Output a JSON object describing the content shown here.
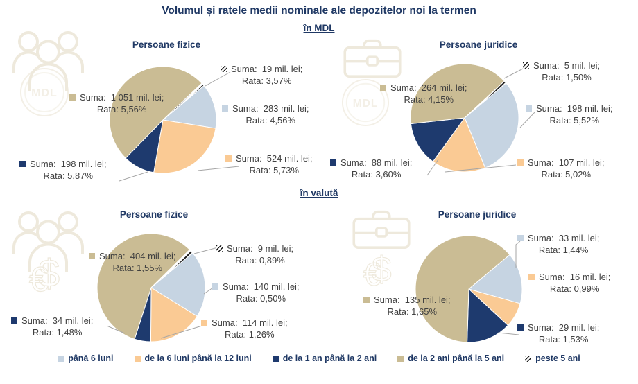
{
  "title": "Volumul și ratele medii nominale ale depozitelor noi la termen",
  "sections": [
    {
      "label": "în MDL"
    },
    {
      "label": "în valută"
    }
  ],
  "legend": [
    {
      "key": "pana6",
      "label": "până 6 luni"
    },
    {
      "key": "luni6_12",
      "label": "de la 6 luni până la 12 luni"
    },
    {
      "key": "ani1_2",
      "label": "de la 1 an până la 2 ani"
    },
    {
      "key": "ani2_5",
      "label": "de la 2 ani până la 5 ani"
    },
    {
      "key": "peste5",
      "label": "peste 5 ani",
      "hatch": true
    }
  ],
  "colors": {
    "pana6": "#c6d4e2",
    "luni6_12": "#faca94",
    "ani1_2": "#1e3a6e",
    "ani2_5": "#cabc94",
    "hatch_stripe": "#1a1a1a",
    "title_navy": "#1f3864",
    "label_text": "#404040",
    "leader_line": "#a6a6a6",
    "watermark": "#eee9dc"
  },
  "chart_data": [
    {
      "type": "pie",
      "section": "în MDL",
      "title": "Persoane fizice",
      "suma_unit": "mil. lei",
      "start_angle_deg": 50,
      "legend_position": "bottom",
      "slices": [
        {
          "category": "până 6 luni",
          "key": "pana6",
          "suma_mil_lei": 283,
          "rata_pct": 4.56,
          "label_suma": "Suma:  283 mil. lei;",
          "label_rata": "Rata: 4,56%"
        },
        {
          "category": "de la 6 luni până la 12 luni",
          "key": "luni6_12",
          "suma_mil_lei": 524,
          "rata_pct": 5.73,
          "label_suma": "Suma:  524 mil. lei;",
          "label_rata": "Rata: 5,73%"
        },
        {
          "category": "de la 1 an până la 2 ani",
          "key": "ani1_2",
          "suma_mil_lei": 198,
          "rata_pct": 5.87,
          "label_suma": "Suma:  198 mil. lei;",
          "label_rata": "Rata: 5,87%"
        },
        {
          "category": "de la 2 ani până la 5 ani",
          "key": "ani2_5",
          "suma_mil_lei": 1051,
          "rata_pct": 5.56,
          "label_suma": "Suma:  1 051 mil. lei;",
          "label_rata": "Rata: 5,56%"
        },
        {
          "category": "peste 5 ani",
          "key": "peste5",
          "suma_mil_lei": 19,
          "rata_pct": 3.57,
          "hatch": true,
          "label_suma": "Suma:  19 mil. lei;",
          "label_rata": "Rata: 3,57%"
        }
      ]
    },
    {
      "type": "pie",
      "section": "în MDL",
      "title": "Persoane juridice",
      "suma_unit": "mil. lei",
      "start_angle_deg": 50,
      "legend_position": "bottom",
      "slices": [
        {
          "category": "până 6 luni",
          "key": "pana6",
          "suma_mil_lei": 198,
          "rata_pct": 5.52,
          "label_suma": "Suma:  198 mil. lei;",
          "label_rata": "Rata: 5,52%"
        },
        {
          "category": "de la 6 luni până la 12 luni",
          "key": "luni6_12",
          "suma_mil_lei": 107,
          "rata_pct": 5.02,
          "label_suma": "Suma:  107 mil. lei;",
          "label_rata": "Rata: 5,02%"
        },
        {
          "category": "de la 1 an până la 2 ani",
          "key": "ani1_2",
          "suma_mil_lei": 88,
          "rata_pct": 3.6,
          "label_suma": "Suma:  88 mil. lei;",
          "label_rata": "Rata: 3,60%"
        },
        {
          "category": "de la 2 ani până la 5 ani",
          "key": "ani2_5",
          "suma_mil_lei": 264,
          "rata_pct": 4.15,
          "label_suma": "Suma:  264 mil. lei;",
          "label_rata": "Rata: 4,15%"
        },
        {
          "category": "peste 5 ani",
          "key": "peste5",
          "suma_mil_lei": 5,
          "rata_pct": 1.5,
          "hatch": true,
          "label_suma": "Suma:  5 mil. lei;",
          "label_rata": "Rata: 1,50%"
        }
      ]
    },
    {
      "type": "pie",
      "section": "în valută",
      "title": "Persoane fizice",
      "suma_unit": "mil. lei",
      "start_angle_deg": 50,
      "legend_position": "bottom",
      "slices": [
        {
          "category": "până 6 luni",
          "key": "pana6",
          "suma_mil_lei": 140,
          "rata_pct": 0.5,
          "label_suma": "Suma:  140 mil. lei;",
          "label_rata": "Rata: 0,50%"
        },
        {
          "category": "de la 6 luni până la 12 luni",
          "key": "luni6_12",
          "suma_mil_lei": 114,
          "rata_pct": 1.26,
          "label_suma": "Suma:  114 mil. lei;",
          "label_rata": "Rata: 1,26%"
        },
        {
          "category": "de la 1 an până la 2 ani",
          "key": "ani1_2",
          "suma_mil_lei": 34,
          "rata_pct": 1.48,
          "label_suma": "Suma:  34 mil. lei;",
          "label_rata": "Rata: 1,48%"
        },
        {
          "category": "de la 2 ani până la 5 ani",
          "key": "ani2_5",
          "suma_mil_lei": 404,
          "rata_pct": 1.55,
          "label_suma": "Suma:  404 mil. lei;",
          "label_rata": "Rata: 1,55%"
        },
        {
          "category": "peste 5 ani",
          "key": "peste5",
          "suma_mil_lei": 9,
          "rata_pct": 0.89,
          "hatch": true,
          "label_suma": "Suma:  9 mil. lei;",
          "label_rata": "Rata: 0,89%"
        }
      ]
    },
    {
      "type": "pie",
      "section": "în valută",
      "title": "Persoane juridice",
      "suma_unit": "mil. lei",
      "start_angle_deg": 50,
      "legend_position": "bottom",
      "slices": [
        {
          "category": "până 6 luni",
          "key": "pana6",
          "suma_mil_lei": 33,
          "rata_pct": 1.44,
          "label_suma": "Suma:  33 mil. lei;",
          "label_rata": "Rata: 1,44%"
        },
        {
          "category": "de la 6 luni până la 12 luni",
          "key": "luni6_12",
          "suma_mil_lei": 16,
          "rata_pct": 0.99,
          "label_suma": "Suma:  16 mil. lei;",
          "label_rata": "Rata: 0,99%"
        },
        {
          "category": "de la 1 an până la 2 ani",
          "key": "ani1_2",
          "suma_mil_lei": 29,
          "rata_pct": 1.53,
          "label_suma": "Suma:  29 mil. lei;",
          "label_rata": "Rata: 1,53%"
        },
        {
          "category": "de la 2 ani până la 5 ani",
          "key": "ani2_5",
          "suma_mil_lei": 135,
          "rata_pct": 1.65,
          "label_suma": "Suma:  135 mil. lei;",
          "label_rata": "Rata: 1,65%"
        }
      ]
    }
  ]
}
